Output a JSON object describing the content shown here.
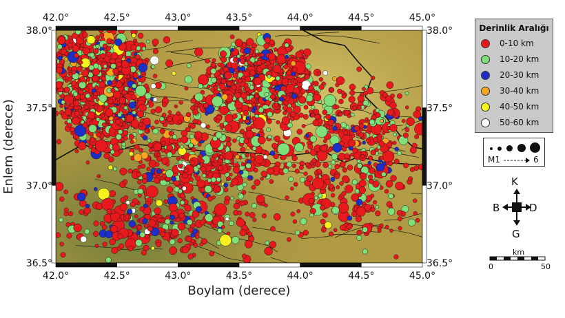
{
  "map": {
    "x_ticks": [
      "42.0°",
      "42.5°",
      "43.0°",
      "43.5°",
      "44.0°",
      "44.5°",
      "45.0°"
    ],
    "y_ticks": [
      "38.0°",
      "37.5°",
      "37.0°",
      "36.5°"
    ],
    "x_title": "Boylam (derece)",
    "y_title": "Enlem (derece)",
    "lon_range": [
      42.0,
      45.0
    ],
    "lat_range": [
      36.5,
      38.0
    ],
    "background_colors": [
      "#b8a24a",
      "#c9b35a",
      "#9c8a38",
      "#6f7a3a"
    ]
  },
  "legend": {
    "title": "Derinlik Aralığı",
    "items": [
      {
        "label": "0-10 km",
        "color": "#e8191c"
      },
      {
        "label": "10-20 km",
        "color": "#7fe07a"
      },
      {
        "label": "20-30 km",
        "color": "#1c2fc8"
      },
      {
        "label": "30-40 km",
        "color": "#f5a623"
      },
      {
        "label": "40-50 km",
        "color": "#f7f21e"
      },
      {
        "label": "50-60 km",
        "color": "#ffffff"
      }
    ]
  },
  "magnitude": {
    "label_min": "M1",
    "label_max": "6"
  },
  "compass": {
    "north": "K",
    "south": "G",
    "west": "B",
    "east": "D"
  },
  "scale": {
    "unit": "km",
    "start": "0",
    "end": "50"
  }
}
